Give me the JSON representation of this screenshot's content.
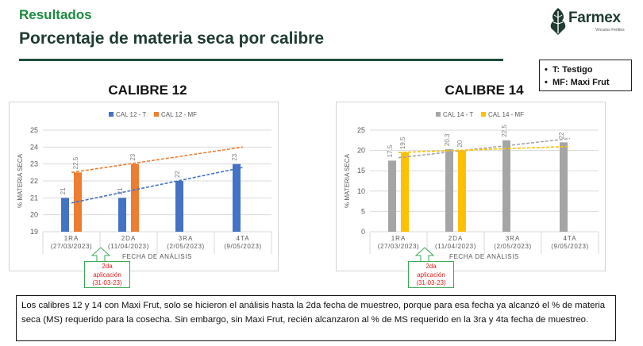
{
  "header": {
    "section": "Resultados",
    "title": "Porcentaje de materia seca por calibre",
    "logo_name": "Farmex",
    "logo_tagline": "Vinculos Fertiles"
  },
  "legend_box": [
    {
      "bullet": "•",
      "text": "T: Testigo"
    },
    {
      "bullet": "•",
      "text": "MF: Maxi Frut"
    }
  ],
  "chart_titles": [
    "CALIBRE 12",
    "CALIBRE 14"
  ],
  "callouts": [
    {
      "line1": "2da",
      "line2": "aplicación",
      "line3": "(31-03-23)"
    },
    {
      "line1": "2da",
      "line2": "aplicación",
      "line3": "(31-03-23)"
    }
  ],
  "note": "Los calibres 12 y 14 con Maxi Frut, solo se hicieron el análisis hasta la 2da fecha de muestreo, porque para esa fecha ya alcanzó el % de materia seca (MS) requerido para la cosecha. Sin embargo, sin Maxi Frut, recién alcanzaron al % de  MS requerido en la 3ra y 4ta fecha de muestreo.",
  "colors": {
    "cal12_t": "#4472c4",
    "cal12_mf": "#ed7d31",
    "cal14_t": "#a5a5a5",
    "cal14_mf": "#ffc000",
    "brand_green": "#1d8a3e",
    "callout_text": "#e0201d"
  },
  "chart_data": [
    {
      "type": "bar",
      "title": "",
      "xlabel": "FECHA DE ANÁLISIS",
      "ylabel": "% MATERIA SECA",
      "categories": [
        "1RA",
        "2DA",
        "3RA",
        "4TA"
      ],
      "category_dates": [
        "(27/03/2023)",
        "(11/04/2023)",
        "(2/05/2023)",
        "(9/05/2023)"
      ],
      "ylim": [
        19,
        25
      ],
      "yticks": [
        19,
        20,
        21,
        22,
        23,
        24,
        25
      ],
      "legend": "top",
      "grid": true,
      "trendlines": true,
      "series": [
        {
          "name": "CAL 12 - T",
          "color": "#4472c4",
          "values": [
            21,
            21,
            22,
            23
          ],
          "labels": [
            "21",
            "21",
            "22",
            "23"
          ]
        },
        {
          "name": "CAL 12 - MF",
          "color": "#ed7d31",
          "values": [
            22.5,
            23,
            null,
            null
          ],
          "labels": [
            "22.5",
            "23",
            "",
            ""
          ]
        }
      ]
    },
    {
      "type": "bar",
      "title": "",
      "xlabel": "FECHA DE ANÁLISIS",
      "ylabel": "% MATERIA SECA",
      "categories": [
        "1RA",
        "2DA",
        "3RA",
        "4TA"
      ],
      "category_dates": [
        "(27/03/2023)",
        "(11/04/2023)",
        "(2/05/2023)",
        "(9/05/2023)"
      ],
      "ylim": [
        0,
        25
      ],
      "yticks": [
        0,
        5,
        10,
        15,
        20,
        25
      ],
      "legend": "top",
      "grid": true,
      "trendlines": true,
      "series": [
        {
          "name": "CAL 14 - T",
          "color": "#a5a5a5",
          "values": [
            17.5,
            20.3,
            22.5,
            22
          ],
          "labels": [
            "17.5",
            "20.3",
            "22.5",
            "22"
          ]
        },
        {
          "name": "CAL 14 - MF",
          "color": "#ffc000",
          "values": [
            19.5,
            20,
            null,
            null
          ],
          "labels": [
            "19.5",
            "20",
            "",
            ""
          ]
        }
      ]
    }
  ]
}
